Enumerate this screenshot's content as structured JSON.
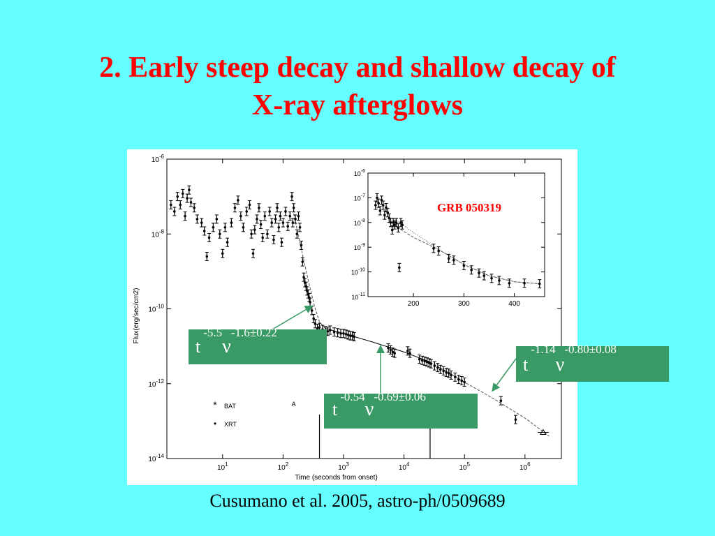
{
  "title": {
    "line1": "2. Early steep decay and shallow decay of",
    "line2": "X-ray afterglows"
  },
  "colors": {
    "background": "#66FFFF",
    "title": "#FF0000",
    "callout": "#3A9A66",
    "inset_label": "#FF0000"
  },
  "callouts": [
    {
      "t": "t",
      "t_exp": "-5.5",
      "nu": "ν",
      "nu_exp": "-1.6±0.22"
    },
    {
      "t": "t",
      "t_exp": "-0.54",
      "nu": "ν",
      "nu_exp": "-0.69±0.06"
    },
    {
      "t": "t",
      "t_exp": "-1.14",
      "nu": "ν",
      "nu_exp": "-0.80±0.08"
    }
  ],
  "caption": "Cusumano et al. 2005, astro-ph/0509689",
  "chart_data": [
    {
      "type": "scatter",
      "xlabel": "Time (seconds from onset)",
      "ylabel": "Flux(erg/sec/cm2)",
      "xscale": "log",
      "yscale": "log",
      "xlim": [
        1.2,
        4000000
      ],
      "ylim": [
        1e-14,
        1e-06
      ],
      "xticks": [
        {
          "v": 10,
          "b": "10",
          "e": "1"
        },
        {
          "v": 100,
          "b": "10",
          "e": "2"
        },
        {
          "v": 1000,
          "b": "10",
          "e": "3"
        },
        {
          "v": 10000,
          "b": "10",
          "e": "4"
        },
        {
          "v": 100000,
          "b": "10",
          "e": "5"
        },
        {
          "v": 1000000,
          "b": "10",
          "e": "6"
        }
      ],
      "yticks": [
        {
          "v": 1e-14,
          "b": "10",
          "e": "-14"
        },
        {
          "v": 1e-12,
          "b": "10",
          "e": "-12"
        },
        {
          "v": 1e-10,
          "b": "10",
          "e": "-10"
        },
        {
          "v": 1e-08,
          "b": "10",
          "e": "-8"
        },
        {
          "v": 1e-06,
          "b": "10",
          "e": "-6"
        }
      ],
      "legend": {
        "position": "bottom-left",
        "entries": [
          {
            "marker": "*",
            "label": "BAT"
          },
          {
            "marker": "•",
            "label": "XRT"
          }
        ]
      },
      "segment_labels": [
        {
          "label": "A",
          "x": 150,
          "y": 2.5e-13
        },
        {
          "label": "C",
          "x": 100000,
          "y": 2.5e-13
        }
      ],
      "segment_breaks": [
        400,
        27000
      ],
      "series": [
        {
          "marker": "dot",
          "points": [
            [
              1.4,
              6e-08
            ],
            [
              1.6,
              4e-08
            ],
            [
              1.8,
              1e-07
            ],
            [
              2.0,
              6e-08
            ],
            [
              2.2,
              1.2e-07
            ],
            [
              2.4,
              3e-08
            ],
            [
              2.6,
              9e-08
            ],
            [
              2.8,
              1.5e-07
            ],
            [
              3.0,
              7e-08
            ],
            [
              3.4,
              5e-08
            ],
            [
              3.8,
              2.5e-08
            ],
            [
              4.5,
              2e-08
            ],
            [
              5.0,
              1.2e-08
            ],
            [
              5.5,
              2.5e-09
            ],
            [
              6,
              8e-09
            ],
            [
              7,
              1.5e-08
            ],
            [
              8,
              2.5e-08
            ],
            [
              9,
              1e-08
            ],
            [
              10,
              3e-09
            ],
            [
              11,
              1.5e-08
            ],
            [
              12,
              6e-09
            ],
            [
              14,
              2e-08
            ],
            [
              16,
              5e-08
            ],
            [
              18,
              8e-08
            ],
            [
              20,
              3e-08
            ],
            [
              22,
              1.5e-08
            ],
            [
              25,
              4e-08
            ],
            [
              28,
              6e-08
            ],
            [
              30,
              1e-08
            ],
            [
              32,
              3e-09
            ],
            [
              34,
              1.3e-08
            ],
            [
              37,
              2.5e-08
            ],
            [
              40,
              5e-08
            ],
            [
              43,
              1.8e-08
            ],
            [
              46,
              8e-09
            ],
            [
              50,
              3e-08
            ],
            [
              55,
              1e-08
            ],
            [
              60,
              4e-08
            ],
            [
              65,
              2e-08
            ],
            [
              70,
              7e-09
            ],
            [
              75,
              2.5e-08
            ],
            [
              80,
              5e-08
            ],
            [
              85,
              1.5e-08
            ],
            [
              90,
              3e-08
            ],
            [
              95,
              6e-09
            ],
            [
              100,
              2e-08
            ],
            [
              110,
              4e-08
            ],
            [
              120,
              1.6e-08
            ],
            [
              130,
              3e-08
            ],
            [
              140,
              1e-07
            ],
            [
              145,
              2e-08
            ],
            [
              150,
              5e-08
            ],
            [
              160,
              2.5e-08
            ],
            [
              170,
              1e-08
            ],
            [
              180,
              3e-08
            ]
          ]
        },
        {
          "marker": "dot",
          "points": [
            [
              190,
              1.5e-08
            ],
            [
              200,
              5e-09
            ],
            [
              210,
              1.8e-09
            ],
            [
              220,
              7e-10
            ],
            [
              230,
              5e-10
            ],
            [
              240,
              4e-10
            ],
            [
              250,
              3e-10
            ],
            [
              260,
              2.5e-10
            ],
            [
              270,
              2e-10
            ],
            [
              280,
              1.5e-10
            ],
            [
              300,
              9e-11
            ],
            [
              320,
              5.5e-11
            ],
            [
              340,
              4e-11
            ],
            [
              370,
              3e-11
            ],
            [
              400,
              3.2e-11
            ],
            [
              450,
              2.8e-11
            ],
            [
              500,
              2.6e-11
            ],
            [
              550,
              2.5e-11
            ],
            [
              600,
              2.7e-11
            ],
            [
              700,
              2.4e-11
            ],
            [
              800,
              2.3e-11
            ],
            [
              900,
              2.2e-11
            ],
            [
              1000,
              2.2e-11
            ],
            [
              1100,
              2.1e-11
            ],
            [
              1200,
              2e-11
            ],
            [
              1300,
              1.9e-11
            ],
            [
              1400,
              1.9e-11
            ],
            [
              1500,
              1.8e-11
            ],
            [
              5500,
              9e-12
            ],
            [
              6000,
              8e-12
            ],
            [
              6500,
              7e-12
            ],
            [
              7000,
              6.5e-12
            ],
            [
              11500,
              7.5e-12
            ],
            [
              12500,
              6.5e-12
            ],
            [
              18000,
              4.5e-12
            ],
            [
              20000,
              4.2e-12
            ],
            [
              22000,
              4e-12
            ],
            [
              24000,
              3.8e-12
            ],
            [
              26000,
              3.6e-12
            ],
            [
              28000,
              3.4e-12
            ],
            [
              32000,
              3e-12
            ],
            [
              36000,
              2.7e-12
            ],
            [
              40000,
              2.4e-12
            ],
            [
              45000,
              2.2e-12
            ],
            [
              50000,
              2e-12
            ],
            [
              55000,
              1.9e-12
            ],
            [
              60000,
              1.7e-12
            ],
            [
              70000,
              1.5e-12
            ],
            [
              80000,
              1.3e-12
            ],
            [
              90000,
              1.2e-12
            ],
            [
              100000,
              1.1e-12
            ]
          ]
        },
        {
          "marker": "dot",
          "points": [
            [
              400000,
              3.5e-13
            ],
            [
              700000,
              1.1e-13
            ]
          ]
        },
        {
          "marker": "triangle",
          "points": [
            [
              2000000,
              5e-14
            ]
          ]
        }
      ]
    },
    {
      "type": "scatter",
      "title": "GRB 050319",
      "xscale": "linear",
      "yscale": "log",
      "xlim": [
        110,
        460
      ],
      "ylim": [
        1e-11,
        1e-06
      ],
      "xticks": [
        {
          "v": 200,
          "l": "200"
        },
        {
          "v": 300,
          "l": "300"
        },
        {
          "v": 400,
          "l": "400"
        }
      ],
      "yticks": [
        {
          "v": 1e-11,
          "b": "10",
          "e": "-11"
        },
        {
          "v": 1e-10,
          "b": "10",
          "e": "-10"
        },
        {
          "v": 1e-09,
          "b": "10",
          "e": "-9"
        },
        {
          "v": 1e-08,
          "b": "10",
          "e": "-8"
        },
        {
          "v": 1e-07,
          "b": "10",
          "e": "-7"
        },
        {
          "v": 1e-06,
          "b": "10",
          "e": "-6"
        }
      ],
      "series": [
        {
          "marker": "dot",
          "points": [
            [
              125,
              5e-08
            ],
            [
              128,
              1e-07
            ],
            [
              131,
              6e-08
            ],
            [
              134,
              3e-08
            ],
            [
              137,
              8e-08
            ],
            [
              140,
              5e-08
            ],
            [
              143,
              2e-08
            ],
            [
              146,
              4e-08
            ],
            [
              149,
              2.5e-08
            ],
            [
              152,
              1.5e-08
            ],
            [
              155,
              1e-08
            ],
            [
              158,
              5e-09
            ],
            [
              160,
              1e-08
            ],
            [
              163,
              8e-09
            ],
            [
              166,
              1e-08
            ],
            [
              170,
              6e-09
            ],
            [
              172,
              1.5e-10
            ],
            [
              175,
              1e-08
            ],
            [
              178,
              8e-09
            ],
            [
              240,
              9e-10
            ],
            [
              250,
              7e-10
            ],
            [
              270,
              3.5e-10
            ],
            [
              280,
              3e-10
            ],
            [
              300,
              1.8e-10
            ],
            [
              315,
              1.2e-10
            ],
            [
              330,
              9e-11
            ],
            [
              340,
              7e-11
            ],
            [
              355,
              5.5e-11
            ],
            [
              370,
              4.5e-11
            ],
            [
              390,
              3.5e-11
            ],
            [
              420,
              3.5e-11
            ],
            [
              450,
              3.3e-11
            ]
          ]
        }
      ]
    }
  ]
}
